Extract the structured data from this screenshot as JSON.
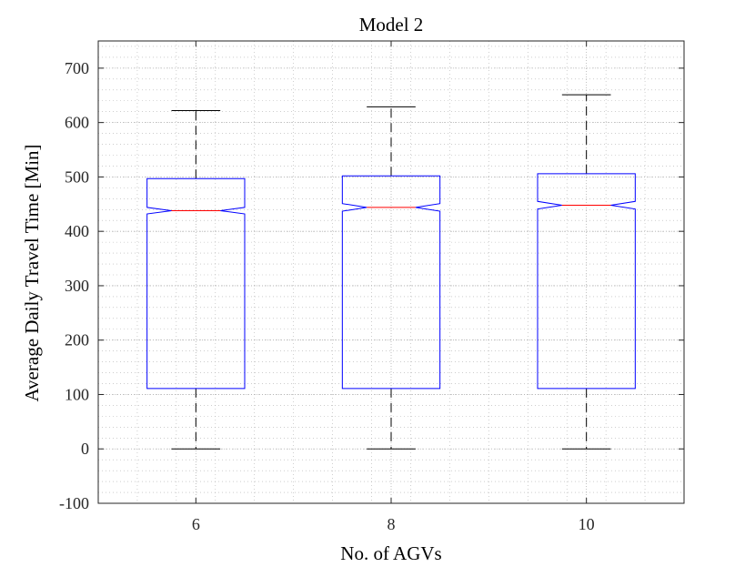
{
  "chart_data": {
    "type": "boxplot",
    "title": "Model 2",
    "xlabel": "No. of AGVs",
    "ylabel": "Average Daily Travel Time [Min]",
    "categories": [
      "6",
      "8",
      "10"
    ],
    "ylim": [
      -100,
      750
    ],
    "yticks": [
      -100,
      0,
      100,
      200,
      300,
      400,
      500,
      600,
      700
    ],
    "ytick_labels": [
      "-100",
      "0",
      "100",
      "200",
      "300",
      "400",
      "500",
      "600",
      "700"
    ],
    "grid": "major and minor, dotted",
    "notched": true,
    "boxes": [
      {
        "category": "6",
        "whisker_low": 0,
        "q1": 111,
        "median": 438,
        "q3": 497,
        "whisker_high": 622,
        "notch_low": 432,
        "notch_high": 444
      },
      {
        "category": "8",
        "whisker_low": 0,
        "q1": 111,
        "median": 444,
        "q3": 502,
        "whisker_high": 629,
        "notch_low": 437,
        "notch_high": 451
      },
      {
        "category": "10",
        "whisker_low": 0,
        "q1": 111,
        "median": 448,
        "q3": 506,
        "whisker_high": 651,
        "notch_low": 441,
        "notch_high": 455
      }
    ],
    "colors": {
      "box": "#0000ff",
      "median": "#ff0000",
      "whisker": "#000000",
      "grid": "#b0b0b0"
    }
  }
}
